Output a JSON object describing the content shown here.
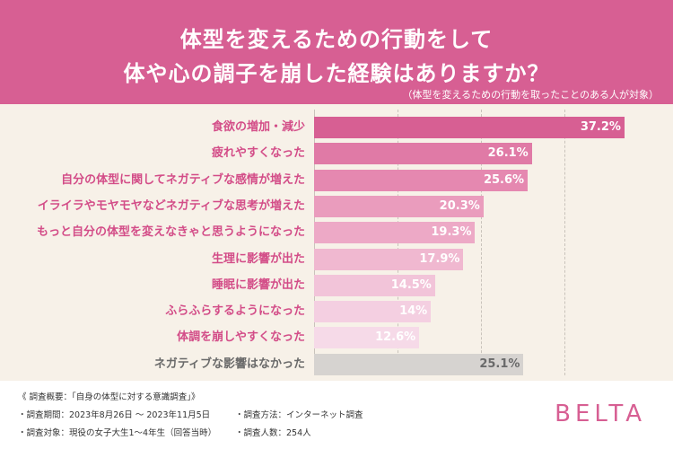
{
  "header": {
    "title_line1": "体型を変えるための行動をして",
    "title_line2": "体や心の調子を崩した経験はありますか？",
    "subtitle": "（体型を変えるための行動を取ったことのある人が対象）",
    "background_color": "#d75f93"
  },
  "chart_data": {
    "type": "bar",
    "orientation": "horizontal",
    "title": "体型を変えるための行動をして体や心の調子を崩した経験はありますか？",
    "xlim": [
      0,
      40
    ],
    "gridlines_at": [
      10,
      20,
      30
    ],
    "unit": "%",
    "categories": [
      "食欲の増加・減少",
      "疲れやすくなった",
      "自分の体型に関してネガティブな感情が増えた",
      "イライラやモヤモヤなどネガティブな思考が増えた",
      "もっと自分の体型を変えなきゃと思うようになった",
      "生理に影響が出た",
      "睡眠に影響が出た",
      "ふらふらするようになった",
      "体調を崩しやすくなった",
      "ネガティブな影響はなかった"
    ],
    "values": [
      37.2,
      26.1,
      25.6,
      20.3,
      19.3,
      17.9,
      14.5,
      14,
      12.6,
      25.1
    ],
    "value_labels": [
      "37.2%",
      "26.1%",
      "25.6%",
      "20.3%",
      "19.3%",
      "17.9%",
      "14.5%",
      "14%",
      "12.6%",
      "25.1%"
    ],
    "colors": [
      "#d75f93",
      "#e07aa6",
      "#e588b0",
      "#ea9cbd",
      "#eda9c6",
      "#f0b8d0",
      "#f2c4d9",
      "#f4cfe1",
      "#f6dae8",
      "#d6d3d0"
    ],
    "neutral_index": 9
  },
  "footer": {
    "survey_title": "《 調査概要：「自身の体型に対する意識調査」》",
    "period": "・調査期間：2023年8月26日 ～ 2023年11月5日",
    "method": "・調査方法：インターネット調査",
    "target": "・調査対象：現役の女子大生1～4年生（回答当時）",
    "count": "・調査人数：254人",
    "logo": "BELTA"
  }
}
